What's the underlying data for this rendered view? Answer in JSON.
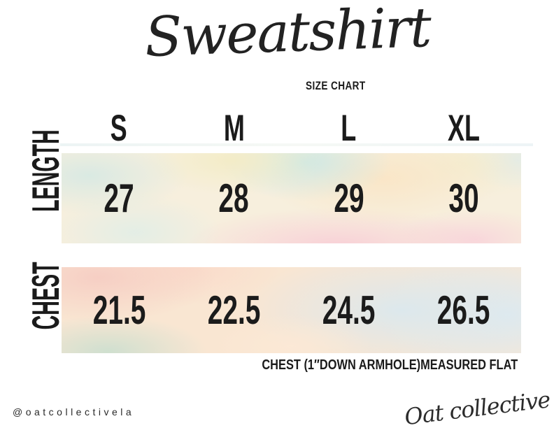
{
  "title": {
    "text": "Sweatshirt",
    "subtitle": "SIZE CHART"
  },
  "chart_data": {
    "type": "table",
    "title": "Sweatshirt",
    "subtitle": "SIZE CHART",
    "columns": [
      "S",
      "M",
      "L",
      "XL"
    ],
    "rows": [
      {
        "label": "LENGTH",
        "values": [
          "27",
          "28",
          "29",
          "30"
        ]
      },
      {
        "label": "CHEST",
        "values": [
          "21.5",
          "22.5",
          "24.5",
          "26.5"
        ]
      }
    ],
    "note": "CHEST (1″DOWN ARMHOLE)MEASURED FLAT",
    "layout_hints": {
      "row_band_style": "pastel watercolor stripes",
      "row_label_orientation": "rotated 90 degrees, left side",
      "grid": "off",
      "units": "inches"
    }
  },
  "footer": {
    "handle": "@oatcollectivela",
    "brand_signature": "Oat collective"
  },
  "colors": {
    "ink": "#1b1b1b",
    "background": "#ffffff",
    "watercolor_palette": [
      "#d8e9e3",
      "#f3ecc6",
      "#cde8e5",
      "#fae5c6",
      "#f8ced7",
      "#f6cdc3",
      "#cddfcf",
      "#dbe8ee",
      "#f7efdd"
    ]
  }
}
